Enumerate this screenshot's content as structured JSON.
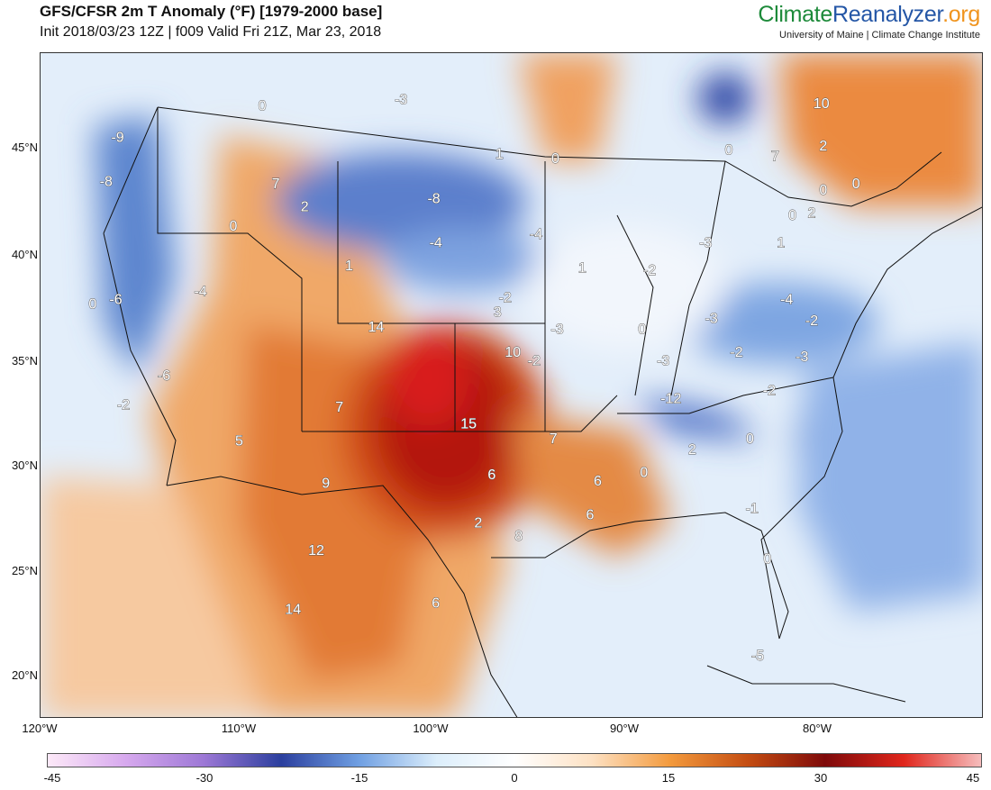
{
  "header": {
    "title": "GFS/CFSR 2m T Anomaly (°F) [1979-2000 base]",
    "subtitle": "Init 2018/03/23 12Z | f009 Valid Fri 21Z, Mar 23, 2018"
  },
  "brand": {
    "part1": "Climate",
    "part2": "Reanalyzer",
    "part3": ".org",
    "affiliation": "University of Maine | Climate Change Institute",
    "colors": {
      "part1": "#1d8a3a",
      "part2": "#2456a6",
      "part3": "#f0941e"
    }
  },
  "map": {
    "lat_labels": [
      "45°N",
      "40°N",
      "35°N",
      "30°N",
      "25°N",
      "20°N"
    ],
    "lon_labels": [
      "120°W",
      "110°W",
      "100°W",
      "90°W",
      "80°W"
    ],
    "anomaly_labels": [
      {
        "text": "-3",
        "lon": -101.3,
        "lat": 47.3
      },
      {
        "text": "0",
        "lon": -108.5,
        "lat": 47.0
      },
      {
        "text": "10",
        "lon": -79.5,
        "lat": 47.1
      },
      {
        "text": "-9",
        "lon": -116.0,
        "lat": 45.5
      },
      {
        "text": "1",
        "lon": -96.2,
        "lat": 44.7
      },
      {
        "text": "0",
        "lon": -93.3,
        "lat": 44.5
      },
      {
        "text": "0",
        "lon": -84.3,
        "lat": 44.9
      },
      {
        "text": "7",
        "lon": -81.9,
        "lat": 44.6
      },
      {
        "text": "2",
        "lon": -79.4,
        "lat": 45.1
      },
      {
        "text": "-8",
        "lon": -116.6,
        "lat": 43.4
      },
      {
        "text": "7",
        "lon": -107.8,
        "lat": 43.3
      },
      {
        "text": "-8",
        "lon": -99.6,
        "lat": 42.6
      },
      {
        "text": "0",
        "lon": -79.4,
        "lat": 43.0
      },
      {
        "text": "0",
        "lon": -77.7,
        "lat": 43.3
      },
      {
        "text": "2",
        "lon": -106.3,
        "lat": 42.2
      },
      {
        "text": "0",
        "lon": -81.0,
        "lat": 41.8
      },
      {
        "text": "2",
        "lon": -80.0,
        "lat": 41.9
      },
      {
        "text": "0",
        "lon": -110.0,
        "lat": 41.3
      },
      {
        "text": "-4",
        "lon": -94.3,
        "lat": 40.9
      },
      {
        "text": "-4",
        "lon": -99.5,
        "lat": 40.5
      },
      {
        "text": "-3",
        "lon": -85.5,
        "lat": 40.5
      },
      {
        "text": "1",
        "lon": -81.6,
        "lat": 40.5
      },
      {
        "text": "1",
        "lon": -104.0,
        "lat": 39.4
      },
      {
        "text": "1",
        "lon": -91.9,
        "lat": 39.3
      },
      {
        "text": "-2",
        "lon": -88.4,
        "lat": 39.2
      },
      {
        "text": "-4",
        "lon": -111.7,
        "lat": 38.2
      },
      {
        "text": "0",
        "lon": -117.3,
        "lat": 37.6
      },
      {
        "text": "-6",
        "lon": -116.1,
        "lat": 37.8
      },
      {
        "text": "-2",
        "lon": -95.9,
        "lat": 37.9
      },
      {
        "text": "-4",
        "lon": -81.3,
        "lat": 37.8
      },
      {
        "text": "3",
        "lon": -96.3,
        "lat": 37.2
      },
      {
        "text": "-3",
        "lon": -85.2,
        "lat": 36.9
      },
      {
        "text": "-2",
        "lon": -80.0,
        "lat": 36.8
      },
      {
        "text": "14",
        "lon": -102.6,
        "lat": 36.5
      },
      {
        "text": "-3",
        "lon": -93.2,
        "lat": 36.4
      },
      {
        "text": "0",
        "lon": -88.8,
        "lat": 36.4
      },
      {
        "text": "10",
        "lon": -95.5,
        "lat": 35.3
      },
      {
        "text": "-2",
        "lon": -83.9,
        "lat": 35.3
      },
      {
        "text": "-3",
        "lon": -87.7,
        "lat": 34.9
      },
      {
        "text": "-3",
        "lon": -80.5,
        "lat": 35.1
      },
      {
        "text": "-2",
        "lon": -94.4,
        "lat": 34.9
      },
      {
        "text": "-6",
        "lon": -113.6,
        "lat": 34.2
      },
      {
        "text": "-2",
        "lon": -82.2,
        "lat": 33.5
      },
      {
        "text": "-12",
        "lon": -87.3,
        "lat": 33.1
      },
      {
        "text": "7",
        "lon": -104.5,
        "lat": 32.7
      },
      {
        "text": "-2",
        "lon": -115.7,
        "lat": 32.8
      },
      {
        "text": "15",
        "lon": -97.8,
        "lat": 31.9
      },
      {
        "text": "7",
        "lon": -93.4,
        "lat": 31.2
      },
      {
        "text": "5",
        "lon": -109.7,
        "lat": 31.1
      },
      {
        "text": "0",
        "lon": -83.2,
        "lat": 31.2
      },
      {
        "text": "2",
        "lon": -86.2,
        "lat": 30.7
      },
      {
        "text": "0",
        "lon": -88.7,
        "lat": 29.6
      },
      {
        "text": "6",
        "lon": -96.6,
        "lat": 29.5
      },
      {
        "text": "6",
        "lon": -91.1,
        "lat": 29.2
      },
      {
        "text": "9",
        "lon": -105.2,
        "lat": 29.1
      },
      {
        "text": "-1",
        "lon": -83.1,
        "lat": 27.9
      },
      {
        "text": "6",
        "lon": -91.5,
        "lat": 27.6
      },
      {
        "text": "2",
        "lon": -97.3,
        "lat": 27.2
      },
      {
        "text": "8",
        "lon": -95.2,
        "lat": 26.6
      },
      {
        "text": "12",
        "lon": -105.7,
        "lat": 25.9
      },
      {
        "text": "0",
        "lon": -82.3,
        "lat": 25.5
      },
      {
        "text": "6",
        "lon": -99.5,
        "lat": 23.4
      },
      {
        "text": "14",
        "lon": -106.9,
        "lat": 23.1
      },
      {
        "text": "-5",
        "lon": -82.8,
        "lat": 20.9
      }
    ]
  },
  "colorbar": {
    "ticks": [
      "-45",
      "-30",
      "-15",
      "0",
      "15",
      "30",
      "45"
    ],
    "stops": [
      "#fde9f8",
      "#d7a9ee",
      "#9d78d6",
      "#2b3f9e",
      "#6f9fe2",
      "#dceefb",
      "#ffffff",
      "#fde1c3",
      "#f39a3d",
      "#c44d12",
      "#7e0a0a",
      "#e0261c",
      "#f6bdbd"
    ]
  }
}
